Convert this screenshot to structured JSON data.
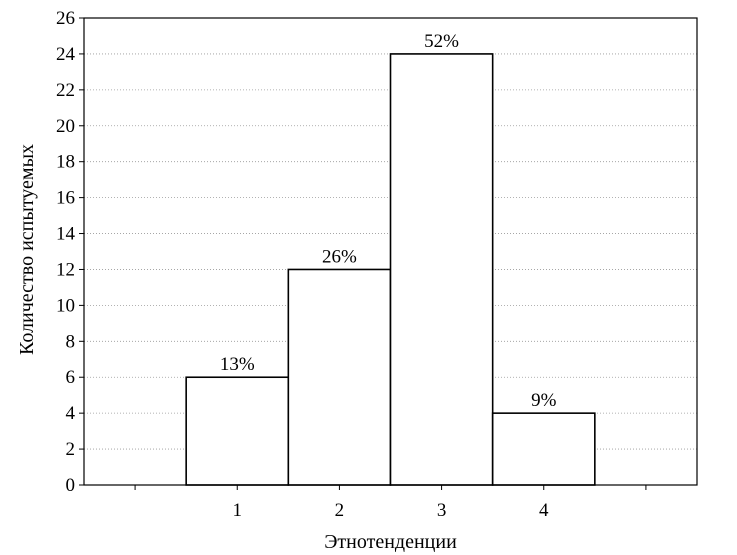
{
  "chart_data": {
    "type": "bar",
    "categories": [
      "1",
      "2",
      "3",
      "4"
    ],
    "values": [
      6,
      12,
      24,
      4
    ],
    "data_labels": [
      "13%",
      "26%",
      "52%",
      "9%"
    ],
    "xlabel": "Этнотенденции",
    "ylabel": "Количество испытуемых",
    "ylim": [
      0,
      26
    ],
    "yticks": [
      0,
      2,
      4,
      6,
      8,
      10,
      12,
      14,
      16,
      18,
      20,
      22,
      24,
      26
    ],
    "xlim": [
      -0.5,
      5.5
    ],
    "grid": "horizontal-dotted",
    "legend": "none",
    "colors": {
      "bar_fill": "#ffffff",
      "bar_stroke": "#000000",
      "grid": "#999999"
    }
  }
}
